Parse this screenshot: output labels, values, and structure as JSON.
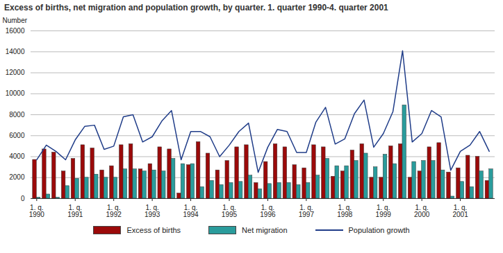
{
  "chart_data": {
    "type": "bar",
    "title": "Excess of births, net migration and population growth, by quarter. 1. quarter 1990-4. quarter 2001",
    "y_label": "Number",
    "categories": [
      "1. q.\n1990",
      null,
      null,
      null,
      "1. q.\n1991",
      null,
      null,
      null,
      "1. q.\n1992",
      null,
      null,
      null,
      "1. q.\n1993",
      null,
      null,
      null,
      "1. q.\n1994",
      null,
      null,
      null,
      "1. q.\n1995",
      null,
      null,
      null,
      "1. q.\n1996",
      null,
      null,
      null,
      "1. q.\n1997",
      null,
      null,
      null,
      "1. q.\n1998",
      null,
      null,
      null,
      "1. q.\n1999",
      null,
      null,
      null,
      "1. q.\n2000",
      null,
      null,
      null,
      "1. q.\n2001",
      null,
      null,
      null
    ],
    "series": [
      {
        "name": "Excess of births",
        "type": "bar",
        "color": "#9b0a0a",
        "values": [
          3700,
          4700,
          4400,
          2600,
          3800,
          5100,
          4800,
          2700,
          3100,
          5100,
          5200,
          2800,
          3300,
          4900,
          4700,
          500,
          3200,
          5400,
          4300,
          2700,
          3600,
          4900,
          5100,
          1500,
          3500,
          5200,
          4900,
          3200,
          2900,
          5100,
          4900,
          2100,
          2600,
          4600,
          5200,
          2000,
          2000,
          5000,
          5200,
          2000,
          2600,
          4900,
          5300,
          2500,
          2900,
          4100,
          4000,
          1700
        ]
      },
      {
        "name": "Net migration",
        "type": "bar",
        "color": "#2a9c9c",
        "values": [
          100,
          400,
          100,
          1200,
          1900,
          2000,
          2300,
          2000,
          2000,
          2800,
          2800,
          2600,
          2700,
          2600,
          3800,
          3300,
          3300,
          1100,
          1700,
          1300,
          1500,
          1600,
          2200,
          900,
          1400,
          1500,
          1500,
          1300,
          1500,
          2200,
          3800,
          3100,
          3100,
          3600,
          4300,
          3000,
          4200,
          3300,
          8900,
          3500,
          3600,
          3600,
          2700,
          200,
          1600,
          1100,
          2600,
          2800
        ]
      },
      {
        "name": "Population growth",
        "type": "line",
        "color": "#1f3c88",
        "values": [
          3700,
          5100,
          4500,
          3700,
          5600,
          6900,
          7000,
          4700,
          5000,
          7800,
          8000,
          5400,
          5900,
          7400,
          8400,
          3700,
          6400,
          6400,
          5900,
          4000,
          5100,
          6400,
          7200,
          2500,
          4900,
          6600,
          6400,
          4400,
          4400,
          7300,
          8700,
          5200,
          5700,
          8100,
          9400,
          4900,
          6200,
          8300,
          14100,
          5400,
          6200,
          8400,
          7800,
          2700,
          4500,
          5100,
          6400,
          4500
        ]
      }
    ],
    "ylim": [
      0,
      16000
    ],
    "yticks": [
      0,
      2000,
      4000,
      6000,
      8000,
      10000,
      12000,
      14000,
      16000
    ],
    "grid": true,
    "legend": "bottom"
  }
}
